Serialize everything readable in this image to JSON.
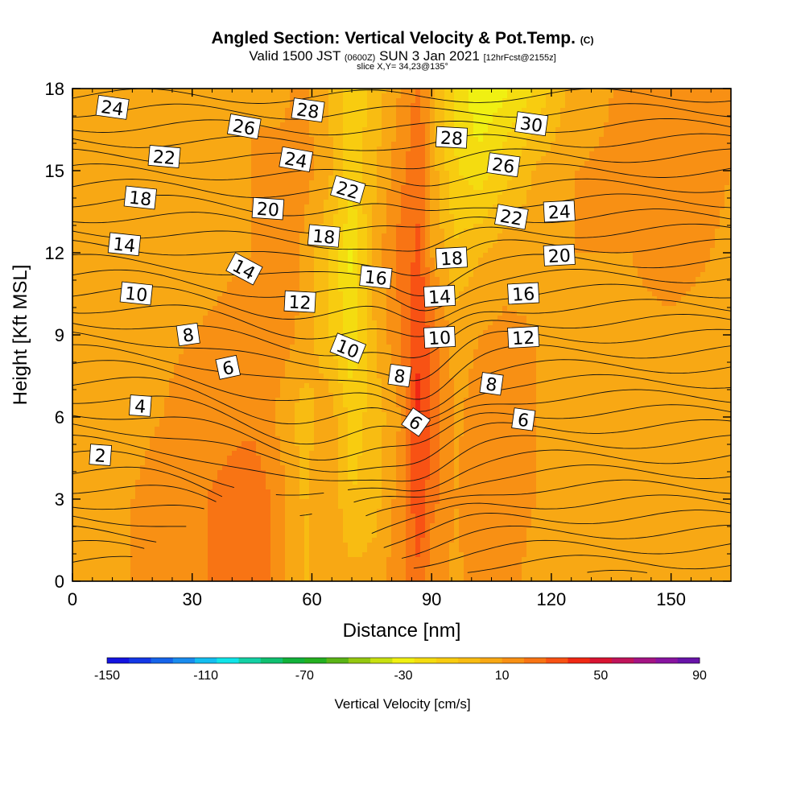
{
  "title": {
    "main": "Angled Section: Vertical Velocity & Pot.Temp.",
    "suffix": "(C)"
  },
  "subtitle": {
    "valid": "Valid 1500 JST",
    "zulu": "(0600Z)",
    "date": "SUN 3 Jan 2021",
    "fcst": "[12hrFcst@2155z]"
  },
  "slice_label": "slice X,Y= 34,23@135°",
  "chart_data": {
    "type": "contour",
    "x_axis": {
      "label": "Distance [nm]",
      "range": [
        0,
        165
      ],
      "ticks": [
        0,
        30,
        60,
        90,
        120,
        150
      ]
    },
    "y_axis": {
      "label": "Height [Kft MSL]",
      "range": [
        0,
        18
      ],
      "ticks": [
        0,
        3,
        6,
        9,
        12,
        15,
        18
      ]
    },
    "colorbar": {
      "label": "Vertical Velocity [cm/s]",
      "range": [
        -150,
        90
      ],
      "tick_labels": [
        -150,
        -110,
        -70,
        -30,
        10,
        50,
        90
      ],
      "colors": [
        "#1414e0",
        "#1438e6",
        "#1664ea",
        "#1a8cee",
        "#14bef0",
        "#10e4e8",
        "#14d0a4",
        "#10c070",
        "#12b23a",
        "#24b020",
        "#5ab416",
        "#94c810",
        "#c8e010",
        "#f0f012",
        "#f4dc10",
        "#f8cc10",
        "#f8bc12",
        "#f8a814",
        "#f89014",
        "#f87414",
        "#f85214",
        "#f02814",
        "#d81432",
        "#c0145a",
        "#a41484",
        "#8814a0",
        "#6814a8"
      ]
    },
    "velocity_field_cm_s": {
      "x_nm": [
        0,
        15,
        30,
        45,
        52,
        58,
        64,
        70,
        76,
        82,
        87,
        90,
        96,
        102,
        108,
        116,
        126,
        140,
        150,
        165
      ],
      "y_kft": [
        0.5,
        3,
        6,
        9,
        12,
        15,
        18
      ],
      "values": [
        [
          6,
          10,
          16,
          26,
          14,
          0,
          8,
          2,
          4,
          16,
          28,
          14,
          8,
          14,
          16,
          6,
          4,
          6,
          8,
          6
        ],
        [
          6,
          10,
          16,
          28,
          14,
          0,
          10,
          -8,
          -2,
          14,
          36,
          22,
          10,
          18,
          18,
          10,
          8,
          8,
          8,
          6
        ],
        [
          4,
          8,
          12,
          16,
          8,
          -4,
          8,
          -12,
          -4,
          10,
          40,
          26,
          8,
          14,
          16,
          10,
          8,
          8,
          8,
          6
        ],
        [
          6,
          8,
          10,
          12,
          14,
          8,
          -6,
          -24,
          2,
          18,
          38,
          24,
          6,
          10,
          12,
          10,
          8,
          8,
          8,
          6
        ],
        [
          4,
          6,
          8,
          10,
          18,
          8,
          -6,
          -28,
          6,
          22,
          30,
          10,
          -6,
          0,
          6,
          8,
          10,
          10,
          14,
          8
        ],
        [
          6,
          8,
          8,
          10,
          12,
          14,
          4,
          -12,
          0,
          16,
          26,
          6,
          -16,
          -22,
          -12,
          2,
          10,
          12,
          16,
          10
        ],
        [
          8,
          10,
          8,
          10,
          8,
          12,
          2,
          -16,
          -4,
          10,
          22,
          4,
          -18,
          -34,
          -28,
          -16,
          6,
          12,
          16,
          10
        ]
      ]
    },
    "terrain_profile": {
      "x_nm": [
        0,
        9,
        10,
        17,
        20,
        23,
        26,
        29,
        32,
        35,
        38,
        41,
        44,
        47,
        50,
        53,
        56,
        59,
        62,
        65,
        68,
        71,
        74,
        77,
        80,
        83,
        86,
        90,
        165
      ],
      "y_kft": [
        0.3,
        0.3,
        0.6,
        0.9,
        1.2,
        1.5,
        1.5,
        1.8,
        2.4,
        2.7,
        3.0,
        3.3,
        3.8,
        3.8,
        3.3,
        2.7,
        2.4,
        2.1,
        2.7,
        3.5,
        3.5,
        2.7,
        1.8,
        1.2,
        0.9,
        0.6,
        0.3,
        0.3,
        0.3
      ]
    },
    "theta_contour_labels_c": [
      {
        "text": "24",
        "x": 10,
        "y": 17.3,
        "rot": 8
      },
      {
        "text": "22",
        "x": 23,
        "y": 15.5,
        "rot": 5
      },
      {
        "text": "18",
        "x": 17,
        "y": 14.0,
        "rot": 6
      },
      {
        "text": "14",
        "x": 13,
        "y": 12.3,
        "rot": 6
      },
      {
        "text": "10",
        "x": 16,
        "y": 10.5,
        "rot": 6
      },
      {
        "text": "8",
        "x": 29,
        "y": 9.0,
        "rot": -8
      },
      {
        "text": "6",
        "x": 39,
        "y": 7.8,
        "rot": -12
      },
      {
        "text": "4",
        "x": 17,
        "y": 6.4,
        "rot": 4
      },
      {
        "text": "2",
        "x": 7,
        "y": 4.6,
        "rot": 4
      },
      {
        "text": "26",
        "x": 43,
        "y": 16.6,
        "rot": 10
      },
      {
        "text": "28",
        "x": 59,
        "y": 17.2,
        "rot": 8
      },
      {
        "text": "24",
        "x": 56,
        "y": 15.4,
        "rot": 10
      },
      {
        "text": "20",
        "x": 49,
        "y": 13.6,
        "rot": 4
      },
      {
        "text": "14",
        "x": 43,
        "y": 11.4,
        "rot": 28
      },
      {
        "text": "12",
        "x": 57,
        "y": 10.2,
        "rot": 3
      },
      {
        "text": "22",
        "x": 69,
        "y": 14.3,
        "rot": 16
      },
      {
        "text": "18",
        "x": 63,
        "y": 12.6,
        "rot": 5
      },
      {
        "text": "16",
        "x": 76,
        "y": 11.1,
        "rot": 6
      },
      {
        "text": "10",
        "x": 69,
        "y": 8.5,
        "rot": 22
      },
      {
        "text": "8",
        "x": 82,
        "y": 7.5,
        "rot": 8
      },
      {
        "text": "6",
        "x": 86,
        "y": 5.8,
        "rot": 35
      },
      {
        "text": "28",
        "x": 95,
        "y": 16.2,
        "rot": 3
      },
      {
        "text": "18",
        "x": 95,
        "y": 11.8,
        "rot": -3
      },
      {
        "text": "14",
        "x": 92,
        "y": 10.4,
        "rot": -3
      },
      {
        "text": "10",
        "x": 92,
        "y": 8.9,
        "rot": -3
      },
      {
        "text": "30",
        "x": 115,
        "y": 16.7,
        "rot": 8
      },
      {
        "text": "26",
        "x": 108,
        "y": 15.2,
        "rot": 8
      },
      {
        "text": "22",
        "x": 110,
        "y": 13.3,
        "rot": 10
      },
      {
        "text": "24",
        "x": 122,
        "y": 13.5,
        "rot": -3
      },
      {
        "text": "20",
        "x": 122,
        "y": 11.9,
        "rot": -3
      },
      {
        "text": "16",
        "x": 113,
        "y": 10.5,
        "rot": -3
      },
      {
        "text": "12",
        "x": 113,
        "y": 8.9,
        "rot": -3
      },
      {
        "text": "8",
        "x": 105,
        "y": 7.2,
        "rot": 8
      },
      {
        "text": "6",
        "x": 113,
        "y": 5.9,
        "rot": 8
      }
    ]
  }
}
